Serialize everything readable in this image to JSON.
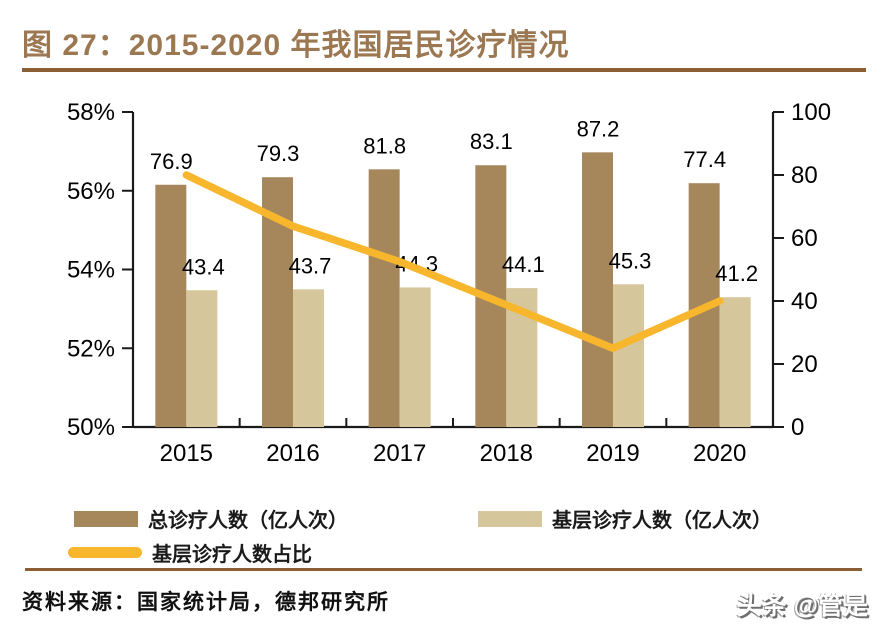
{
  "title": "图 27：2015-2020 年我国居民诊疗情况",
  "colors": {
    "title": "#9C7852",
    "rule": "#8B5E34",
    "bar_total": "#A6875C",
    "bar_primary": "#D5C69C",
    "line": "#F8B62D",
    "axis": "#1a1a1a",
    "label_text": "#000000"
  },
  "chart_data": {
    "type": "bar",
    "subtype": "grouped-bars-with-line-overlay",
    "categories": [
      "2015",
      "2016",
      "2017",
      "2018",
      "2019",
      "2020"
    ],
    "series": [
      {
        "name": "总诊疗人数（亿人次）",
        "type": "bar",
        "axis": "right",
        "color": "#A6875C",
        "values": [
          76.9,
          79.3,
          81.8,
          83.1,
          87.2,
          77.4
        ]
      },
      {
        "name": "基层诊疗人数（亿人次）",
        "type": "bar",
        "axis": "right",
        "color": "#D5C69C",
        "values": [
          43.4,
          43.7,
          44.3,
          44.1,
          45.3,
          41.2
        ]
      },
      {
        "name": "基层诊疗人数占比",
        "type": "line",
        "axis": "left",
        "color": "#F8B62D",
        "values": [
          56.4,
          55.1,
          54.2,
          53.1,
          52.0,
          53.2
        ]
      }
    ],
    "left_axis": {
      "unit": "%",
      "min": 50,
      "max": 58,
      "ticks": [
        "58%",
        "56%",
        "54%",
        "52%",
        "50%"
      ]
    },
    "right_axis": {
      "min": 0,
      "max": 100,
      "ticks": [
        "100",
        "80",
        "60",
        "40",
        "20",
        "0"
      ]
    },
    "grid": false,
    "legend_position": "bottom",
    "data_labels": true
  },
  "legend": {
    "total": "总诊疗人数（亿人次）",
    "primary": "基层诊疗人数（亿人次）",
    "ratio": "基层诊疗人数占比"
  },
  "footer": {
    "source": "资料来源：国家统计局，德邦研究所",
    "watermark": "头条 @管是"
  }
}
